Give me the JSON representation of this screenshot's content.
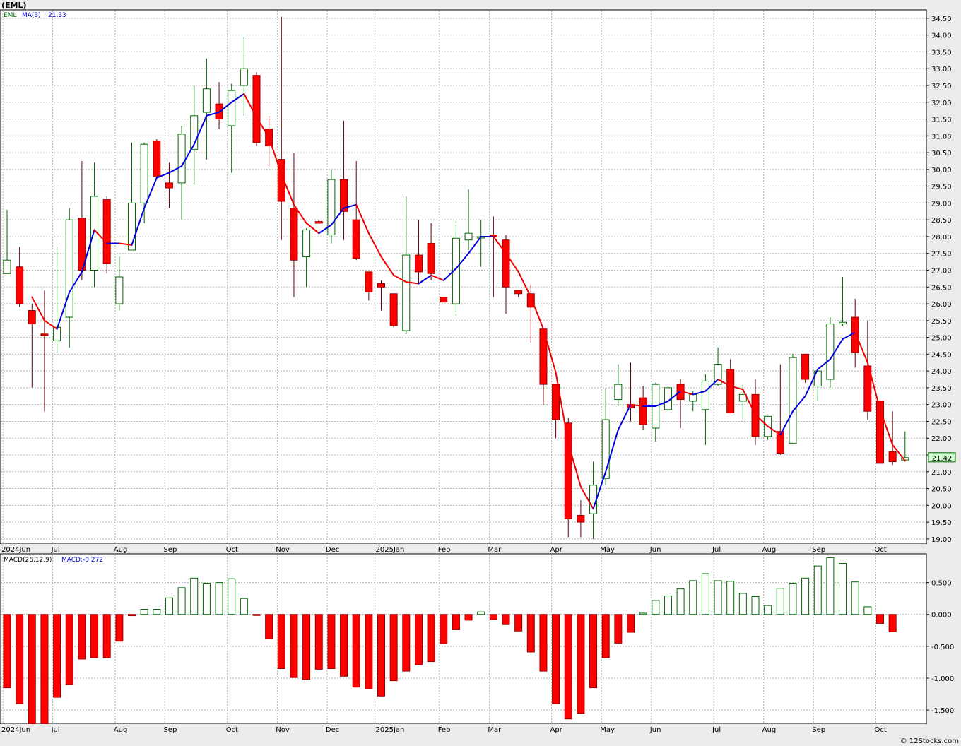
{
  "page": {
    "title": "(EML)",
    "footer": "© 12Stocks.com"
  },
  "colors": {
    "up": "#006600",
    "down": "#ff0000",
    "ma_up": "#0000dd",
    "ma_down": "#ee0000",
    "grid": "#b4b4b4",
    "bg": "#ffffff",
    "frame": "#ececec",
    "last_box": "#ccffcc"
  },
  "chart_data": [
    {
      "type": "candlestick",
      "ticker": "EML",
      "ma_label": "MA(3)",
      "ma_value_label": "21.33",
      "last_price_label": "21.42",
      "ylim": [
        18.85,
        34.75
      ],
      "y_ticks": [
        "19.00",
        "19.50",
        "20.00",
        "20.50",
        "21.00",
        "21.50",
        "22.00",
        "22.50",
        "23.00",
        "23.50",
        "24.00",
        "24.50",
        "25.00",
        "25.50",
        "26.00",
        "26.50",
        "27.00",
        "27.50",
        "28.00",
        "28.50",
        "29.00",
        "29.50",
        "30.00",
        "30.50",
        "31.00",
        "31.50",
        "32.00",
        "32.50",
        "33.00",
        "33.50",
        "34.00",
        "34.50"
      ],
      "x_labels": [
        "2024Jun",
        "Jul",
        "Aug",
        "Sep",
        "Oct",
        "Nov",
        "Dec",
        "2025Jan",
        "Feb",
        "Mar",
        "Apr",
        "May",
        "Jun",
        "Jul",
        "Aug",
        "Sep",
        "Oct"
      ],
      "x_label_week": [
        0,
        4,
        9,
        13,
        18,
        22,
        26,
        30,
        35,
        39,
        44,
        48,
        52,
        57,
        61,
        65,
        70
      ],
      "candles": [
        {
          "o": 26.9,
          "h": 28.8,
          "l": 26.9,
          "c": 27.3
        },
        {
          "o": 27.1,
          "h": 27.7,
          "l": 25.9,
          "c": 26.0
        },
        {
          "o": 25.8,
          "h": 26.0,
          "l": 23.5,
          "c": 25.4
        },
        {
          "o": 25.1,
          "h": 26.4,
          "l": 22.8,
          "c": 25.05
        },
        {
          "o": 24.9,
          "h": 27.7,
          "l": 24.55,
          "c": 25.3
        },
        {
          "o": 25.6,
          "h": 28.85,
          "l": 24.7,
          "c": 28.5
        },
        {
          "o": 28.55,
          "h": 30.25,
          "l": 26.7,
          "c": 27.0
        },
        {
          "o": 27.0,
          "h": 30.2,
          "l": 26.5,
          "c": 29.2
        },
        {
          "o": 29.1,
          "h": 29.2,
          "l": 26.9,
          "c": 27.2
        },
        {
          "o": 26.0,
          "h": 27.4,
          "l": 25.8,
          "c": 26.8
        },
        {
          "o": 27.6,
          "h": 30.8,
          "l": 27.6,
          "c": 29.0
        },
        {
          "o": 29.0,
          "h": 30.8,
          "l": 28.4,
          "c": 30.75
        },
        {
          "o": 30.85,
          "h": 30.9,
          "l": 29.7,
          "c": 29.8
        },
        {
          "o": 29.6,
          "h": 30.2,
          "l": 28.85,
          "c": 29.45
        },
        {
          "o": 29.6,
          "h": 31.3,
          "l": 28.5,
          "c": 31.05
        },
        {
          "o": 30.6,
          "h": 32.5,
          "l": 29.55,
          "c": 31.6
        },
        {
          "o": 31.7,
          "h": 33.3,
          "l": 30.3,
          "c": 32.4
        },
        {
          "o": 31.95,
          "h": 32.6,
          "l": 31.2,
          "c": 31.5
        },
        {
          "o": 31.3,
          "h": 32.55,
          "l": 29.9,
          "c": 32.35
        },
        {
          "o": 32.5,
          "h": 33.95,
          "l": 31.6,
          "c": 33.0
        },
        {
          "o": 32.8,
          "h": 32.9,
          "l": 30.7,
          "c": 30.8
        },
        {
          "o": 31.2,
          "h": 31.6,
          "l": 30.1,
          "c": 30.7
        },
        {
          "o": 30.3,
          "h": 34.55,
          "l": 27.9,
          "c": 29.05
        },
        {
          "o": 28.85,
          "h": 30.5,
          "l": 26.2,
          "c": 27.3
        },
        {
          "o": 27.4,
          "h": 28.25,
          "l": 26.5,
          "c": 28.2
        },
        {
          "o": 28.45,
          "h": 28.5,
          "l": 28.4,
          "c": 28.4
        },
        {
          "o": 28.05,
          "h": 30.0,
          "l": 27.8,
          "c": 29.7
        },
        {
          "o": 29.7,
          "h": 31.45,
          "l": 27.9,
          "c": 28.75
        },
        {
          "o": 28.5,
          "h": 30.25,
          "l": 27.3,
          "c": 27.35
        },
        {
          "o": 26.95,
          "h": 26.95,
          "l": 26.1,
          "c": 26.35
        },
        {
          "o": 26.6,
          "h": 26.7,
          "l": 25.8,
          "c": 26.5
        },
        {
          "o": 26.3,
          "h": 26.3,
          "l": 25.3,
          "c": 25.35
        },
        {
          "o": 25.2,
          "h": 29.2,
          "l": 25.1,
          "c": 27.45
        },
        {
          "o": 27.45,
          "h": 28.5,
          "l": 26.6,
          "c": 26.95
        },
        {
          "o": 27.8,
          "h": 28.4,
          "l": 26.7,
          "c": 26.9
        },
        {
          "o": 26.2,
          "h": 26.2,
          "l": 26.05,
          "c": 26.05
        },
        {
          "o": 26.0,
          "h": 28.45,
          "l": 25.65,
          "c": 27.95
        },
        {
          "o": 27.9,
          "h": 29.4,
          "l": 27.6,
          "c": 28.1
        },
        {
          "o": 28.0,
          "h": 28.5,
          "l": 27.1,
          "c": 28.0
        },
        {
          "o": 28.05,
          "h": 28.6,
          "l": 26.2,
          "c": 28.0
        },
        {
          "o": 27.9,
          "h": 28.05,
          "l": 25.7,
          "c": 26.5
        },
        {
          "o": 26.4,
          "h": 26.4,
          "l": 26.2,
          "c": 26.3
        },
        {
          "o": 26.3,
          "h": 26.6,
          "l": 24.85,
          "c": 25.9
        },
        {
          "o": 25.25,
          "h": 25.25,
          "l": 23.0,
          "c": 23.6
        },
        {
          "o": 23.6,
          "h": 23.6,
          "l": 22.0,
          "c": 22.55
        },
        {
          "o": 22.45,
          "h": 22.6,
          "l": 19.05,
          "c": 19.6
        },
        {
          "o": 19.7,
          "h": 20.15,
          "l": 19.05,
          "c": 19.5
        },
        {
          "o": 19.75,
          "h": 21.3,
          "l": 19.0,
          "c": 20.6
        },
        {
          "o": 20.8,
          "h": 23.5,
          "l": 20.6,
          "c": 22.55
        },
        {
          "o": 23.15,
          "h": 24.2,
          "l": 22.95,
          "c": 23.6
        },
        {
          "o": 23.0,
          "h": 24.25,
          "l": 22.5,
          "c": 22.9
        },
        {
          "o": 23.2,
          "h": 23.55,
          "l": 22.25,
          "c": 22.4
        },
        {
          "o": 22.3,
          "h": 23.65,
          "l": 21.9,
          "c": 23.6
        },
        {
          "o": 22.85,
          "h": 23.55,
          "l": 22.8,
          "c": 23.5
        },
        {
          "o": 23.6,
          "h": 23.75,
          "l": 22.3,
          "c": 23.15
        },
        {
          "o": 23.1,
          "h": 23.4,
          "l": 22.8,
          "c": 23.3
        },
        {
          "o": 22.85,
          "h": 23.9,
          "l": 21.8,
          "c": 23.7
        },
        {
          "o": 23.6,
          "h": 24.7,
          "l": 23.55,
          "c": 24.2
        },
        {
          "o": 24.05,
          "h": 24.35,
          "l": 22.75,
          "c": 22.75
        },
        {
          "o": 23.1,
          "h": 23.6,
          "l": 22.55,
          "c": 23.3
        },
        {
          "o": 23.3,
          "h": 23.75,
          "l": 21.8,
          "c": 22.05
        },
        {
          "o": 22.05,
          "h": 22.6,
          "l": 21.95,
          "c": 22.65
        },
        {
          "o": 22.2,
          "h": 24.2,
          "l": 21.5,
          "c": 21.55
        },
        {
          "o": 21.85,
          "h": 24.5,
          "l": 21.85,
          "c": 24.4
        },
        {
          "o": 24.5,
          "h": 24.5,
          "l": 23.65,
          "c": 23.75
        },
        {
          "o": 23.55,
          "h": 24.0,
          "l": 23.1,
          "c": 24.0
        },
        {
          "o": 23.75,
          "h": 25.6,
          "l": 23.5,
          "c": 25.4
        },
        {
          "o": 25.4,
          "h": 26.8,
          "l": 25.35,
          "c": 25.45
        },
        {
          "o": 25.6,
          "h": 26.15,
          "l": 24.1,
          "c": 24.55
        },
        {
          "o": 24.15,
          "h": 25.5,
          "l": 22.55,
          "c": 22.8
        },
        {
          "o": 23.1,
          "h": 23.1,
          "l": 21.25,
          "c": 21.25
        },
        {
          "o": 21.6,
          "h": 22.8,
          "l": 21.2,
          "c": 21.3
        },
        {
          "o": 21.35,
          "h": 22.2,
          "l": 21.3,
          "c": 21.42
        }
      ],
      "ma3": [
        null,
        null,
        26.2,
        25.5,
        25.25,
        26.35,
        26.95,
        28.2,
        27.8,
        27.8,
        27.75,
        28.85,
        29.75,
        29.9,
        30.1,
        30.75,
        31.6,
        31.7,
        32.0,
        32.25,
        31.55,
        30.95,
        29.85,
        28.95,
        28.4,
        28.1,
        28.35,
        28.85,
        28.95,
        28.1,
        27.4,
        26.85,
        26.65,
        26.6,
        26.85,
        26.7,
        27.05,
        27.5,
        28.0,
        28.0,
        27.5,
        26.95,
        26.2,
        25.25,
        23.95,
        21.85,
        20.55,
        19.9,
        21.0,
        22.25,
        23.0,
        22.95,
        22.95,
        23.1,
        23.4,
        23.3,
        23.4,
        23.75,
        23.55,
        23.45,
        22.7,
        22.35,
        22.1,
        22.8,
        23.25,
        24.05,
        24.35,
        24.95,
        25.15,
        24.25,
        22.85,
        21.8,
        21.33
      ],
      "macd_label": "MACD(26,12,9)",
      "macd_value_label": "MACD:-0.272",
      "macd_ylim": [
        -1.72,
        0.95
      ],
      "macd_ticks": [
        "0.500",
        "0.000",
        "-0.500",
        "-1.000",
        "-1.500"
      ],
      "macd": [
        -1.15,
        -1.4,
        -1.72,
        -1.72,
        -1.3,
        -1.1,
        -0.7,
        -0.68,
        -0.68,
        -0.42,
        -0.02,
        0.08,
        0.08,
        0.26,
        0.42,
        0.57,
        0.49,
        0.5,
        0.56,
        0.25,
        -0.01,
        -0.38,
        -0.85,
        -0.99,
        -1.02,
        -0.86,
        -0.85,
        -0.97,
        -1.14,
        -1.17,
        -1.28,
        -1.04,
        -0.89,
        -0.79,
        -0.74,
        -0.46,
        -0.24,
        -0.09,
        0.04,
        -0.08,
        -0.16,
        -0.26,
        -0.59,
        -0.89,
        -1.4,
        -1.64,
        -1.55,
        -1.15,
        -0.68,
        -0.45,
        -0.28,
        0.02,
        0.22,
        0.29,
        0.4,
        0.53,
        0.64,
        0.53,
        0.52,
        0.33,
        0.28,
        0.14,
        0.41,
        0.49,
        0.57,
        0.76,
        0.89,
        0.8,
        0.51,
        0.12,
        -0.14,
        -0.272
      ]
    }
  ]
}
